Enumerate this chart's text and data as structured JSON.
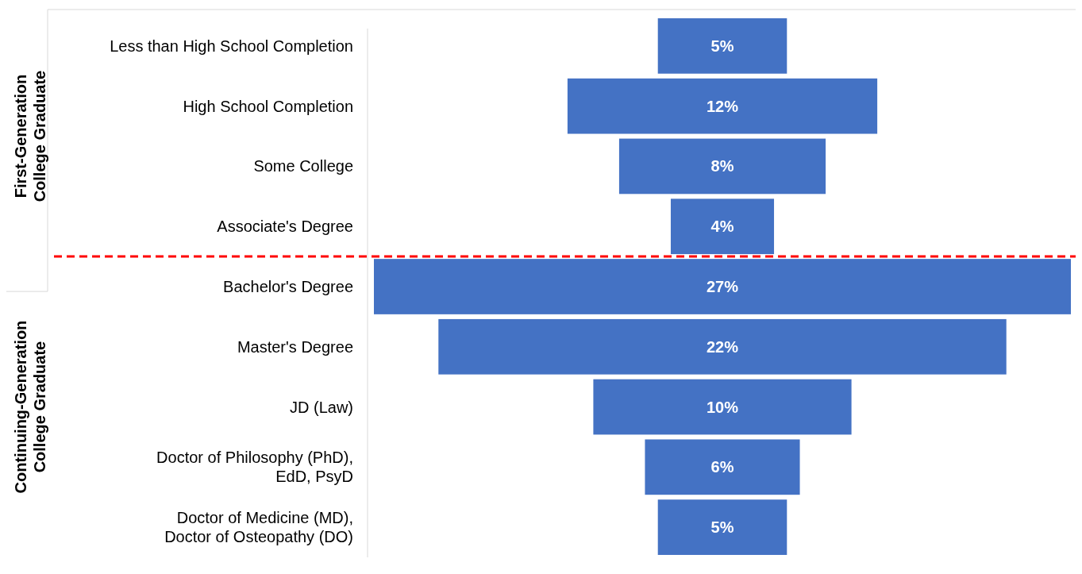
{
  "chart_data": {
    "type": "other",
    "data_labels": true,
    "color": "#4472c4",
    "categories": [
      "Less than High School Completion",
      "High School Completion",
      "Some College",
      "Associate's Degree",
      "Bachelor's Degree",
      "Master's Degree",
      "JD (Law)",
      "Doctor of Philosophy (PhD), EdD, PsyD",
      "Doctor of Medicine (MD), Doctor of Osteopathy (DO)"
    ],
    "values": [
      5,
      12,
      8,
      4,
      27,
      22,
      10,
      6,
      5
    ],
    "value_labels": [
      "5%",
      "12%",
      "8%",
      "4%",
      "27%",
      "22%",
      "10%",
      "6%",
      "5%"
    ],
    "annotations": [
      "First-Generation College Graduate",
      "Continuing-Generation College Graduate"
    ]
  }
}
